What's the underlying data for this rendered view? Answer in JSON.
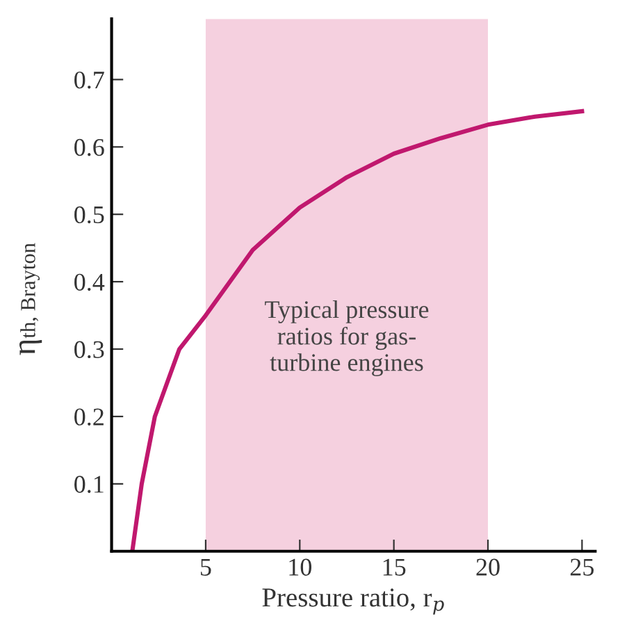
{
  "chart_data": {
    "type": "line",
    "xlabel": "Pressure ratio, r$_{p}$",
    "ylabel": "η$_{th, Brayton}$",
    "x": [
      1.1,
      1.6,
      2.3,
      3.6,
      5,
      7.5,
      10,
      12.5,
      15,
      17.5,
      20,
      22.5,
      25
    ],
    "series": [
      {
        "color": "#c0186e",
        "values": [
          0,
          0.1,
          0.2,
          0.3,
          0.35,
          0.447,
          0.51,
          0.555,
          0.59,
          0.613,
          0.633,
          0.645,
          0.653
        ]
      }
    ],
    "xlim": [
      0,
      25.7
    ],
    "ylim": [
      0,
      0.79
    ],
    "xticks": [
      5,
      10,
      15,
      20,
      25
    ],
    "yticks": [
      0.1,
      0.2,
      0.3,
      0.4,
      0.5,
      0.6,
      0.7
    ],
    "bands": [
      {
        "axis": "x",
        "from": 5,
        "to": 20,
        "label": "Typical pressure\nratios for gas-\nturbine engines",
        "color": "#f5d0df"
      }
    ],
    "grid": false,
    "legend": false
  }
}
